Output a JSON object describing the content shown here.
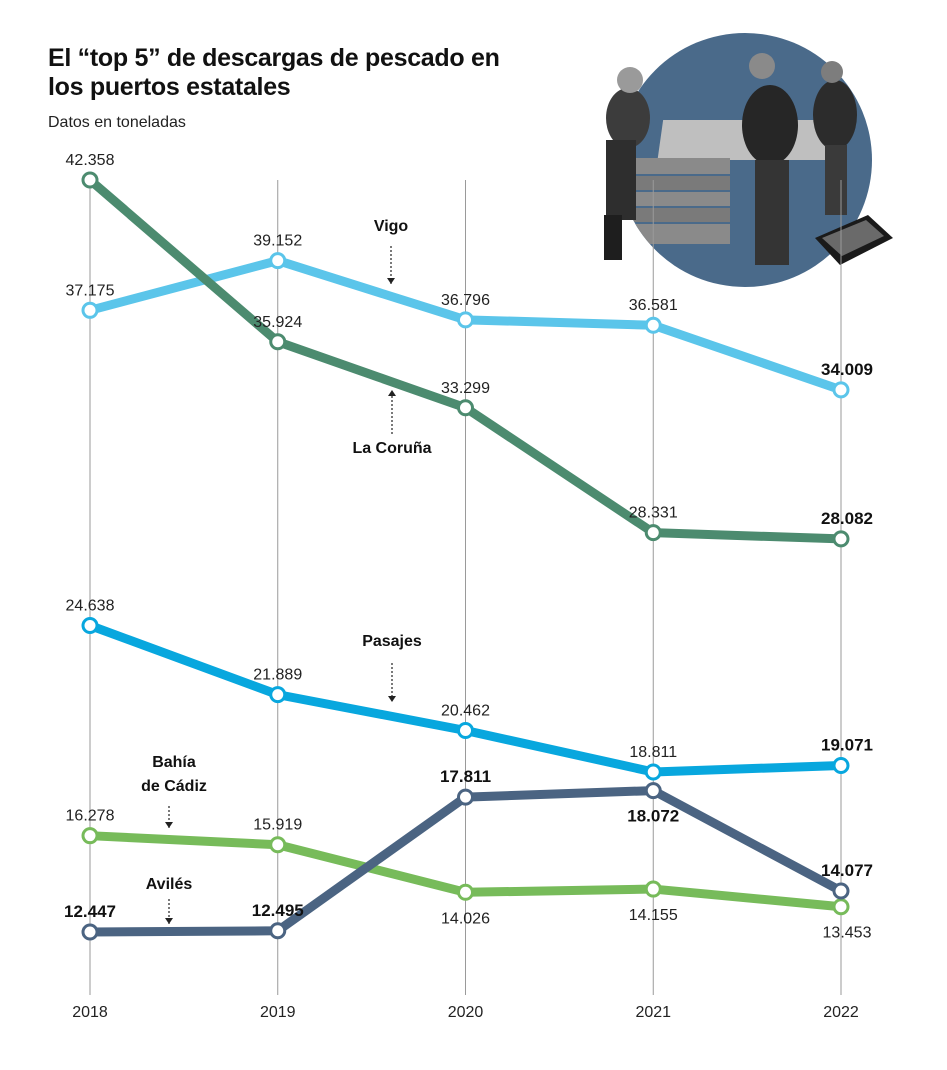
{
  "title": "El “top 5” de descargas de pescado en los puertos estatales",
  "subtitle": "Datos en toneladas",
  "photo": {
    "kind": "photo",
    "subject": "workers unloading fish crates at port",
    "circle_color": "#4a6a8a"
  },
  "chart_data": {
    "type": "line",
    "categories": [
      "2018",
      "2019",
      "2020",
      "2021",
      "2022"
    ],
    "ylim": [
      10000,
      44000
    ],
    "grid": "vertical lines at each year",
    "legend": "inline labels next to lines",
    "series": [
      {
        "name": "Vigo",
        "color": "#5bc5ea",
        "values": [
          37175,
          39152,
          36796,
          36581,
          34009
        ],
        "labels": [
          "37.175",
          "39.152",
          "36.796",
          "36.581",
          "34.009"
        ],
        "bold": [
          false,
          false,
          false,
          false,
          true
        ],
        "label_pos": [
          "above",
          "above",
          "above",
          "above",
          "above"
        ]
      },
      {
        "name": "La Coruña",
        "color": "#4c8b6f",
        "values": [
          42358,
          35924,
          33299,
          28331,
          28082
        ],
        "labels": [
          "42.358",
          "35.924",
          "33.299",
          "28.331",
          "28.082"
        ],
        "bold": [
          false,
          false,
          false,
          false,
          true
        ],
        "label_pos": [
          "above",
          "above",
          "above",
          "above",
          "above"
        ]
      },
      {
        "name": "Pasajes",
        "color": "#08a7de",
        "values": [
          24638,
          21889,
          20462,
          18811,
          19071
        ],
        "labels": [
          "24.638",
          "21.889",
          "20.462",
          "18.811",
          "19.071"
        ],
        "bold": [
          false,
          false,
          false,
          false,
          true
        ],
        "label_pos": [
          "above",
          "above",
          "above",
          "above",
          "above"
        ]
      },
      {
        "name": "Bahía de Cádiz",
        "color": "#77bb5a",
        "values": [
          16278,
          15919,
          14026,
          14155,
          13453
        ],
        "labels": [
          "16.278",
          "15.919",
          "14.026",
          "14.155",
          "13.453"
        ],
        "bold": [
          false,
          false,
          false,
          false,
          false
        ],
        "label_pos": [
          "above",
          "above",
          "below",
          "below",
          "below"
        ]
      },
      {
        "name": "Avilés",
        "color": "#4b6482",
        "values": [
          12447,
          12495,
          17811,
          18072,
          14077
        ],
        "labels": [
          "12.447",
          "12.495",
          "17.811",
          "18.072",
          "14.077"
        ],
        "bold": [
          true,
          true,
          true,
          true,
          true
        ],
        "label_pos": [
          "above",
          "above",
          "above",
          "below",
          "above"
        ]
      }
    ]
  }
}
